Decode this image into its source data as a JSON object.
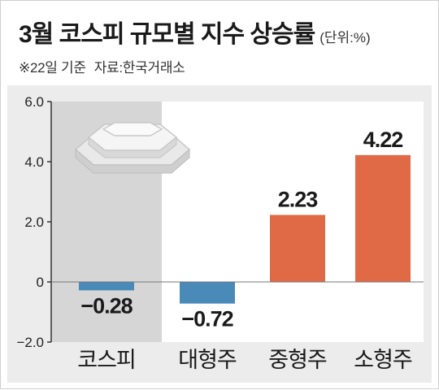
{
  "title": "3월 코스피 규모별 지수 상승률",
  "unit": "(단위:%)",
  "note": "※22일 기준",
  "source": "자료:한국거래소",
  "colors": {
    "negative": "#4a8ab9",
    "positive": "#e06a45",
    "highlight_bg": "#d6d6d6",
    "plot_bg": "#ffffff",
    "frame_bg": "#ececec"
  },
  "chart_data": {
    "type": "bar",
    "categories": [
      "코스피",
      "대형주",
      "중형주",
      "소형주"
    ],
    "values": [
      -0.28,
      -0.72,
      2.23,
      4.22
    ],
    "value_labels": [
      "−0.28",
      "−0.72",
      "2.23",
      "4.22"
    ],
    "ylim": [
      -2.0,
      6.0
    ],
    "yticks": [
      -2.0,
      0,
      2.0,
      4.0,
      6.0
    ],
    "ytick_labels": [
      "−2.0",
      "0",
      "2.0",
      "4.0",
      "6.0"
    ],
    "highlighted_category": "코스피",
    "grid": false
  }
}
